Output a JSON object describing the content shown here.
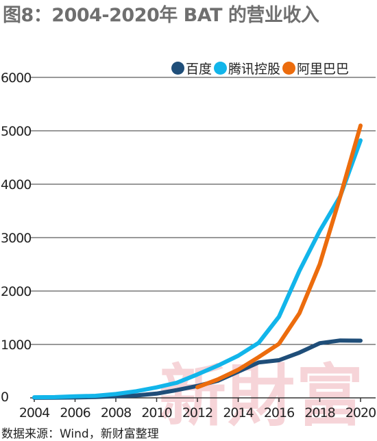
{
  "title": "图8：2004-2020年 BAT 的营业收入",
  "source": "数据来源：Wind，新财富整理",
  "watermark": "新財富",
  "chart_data": {
    "type": "line",
    "title": "图8：2004-2020年 BAT 的营业收入",
    "xlabel": "",
    "ylabel": "",
    "x": [
      2004,
      2005,
      2006,
      2007,
      2008,
      2009,
      2010,
      2011,
      2012,
      2013,
      2014,
      2015,
      2016,
      2017,
      2018,
      2019,
      2020
    ],
    "x_ticks": [
      "2004",
      "2006",
      "2008",
      "2010",
      "2012",
      "2014",
      "2016",
      "2018",
      "2020"
    ],
    "y_ticks": [
      "0",
      "1000",
      "2000",
      "3000",
      "4000",
      "5000",
      "6000"
    ],
    "ylim": [
      0,
      6000
    ],
    "xlim": [
      2004,
      2020
    ],
    "grid": "horizontal",
    "legend_position": "top-right",
    "series": [
      {
        "name": "百度",
        "color": "#1f4e79",
        "values": [
          1,
          3,
          8,
          17,
          31,
          45,
          79,
          146,
          223,
          320,
          490,
          663,
          705,
          848,
          1023,
          1074,
          1071
        ]
      },
      {
        "name": "腾讯控股",
        "color": "#12b5ea",
        "values": [
          11,
          14,
          28,
          38,
          72,
          124,
          196,
          285,
          439,
          604,
          789,
          1029,
          1519,
          2378,
          3127,
          3773,
          4821
        ]
      },
      {
        "name": "阿里巴巴",
        "color": "#ec6c0d",
        "values": [
          null,
          null,
          null,
          null,
          null,
          null,
          null,
          null,
          200,
          345,
          525,
          763,
          1011,
          1583,
          2503,
          3768,
          5097
        ]
      }
    ]
  }
}
